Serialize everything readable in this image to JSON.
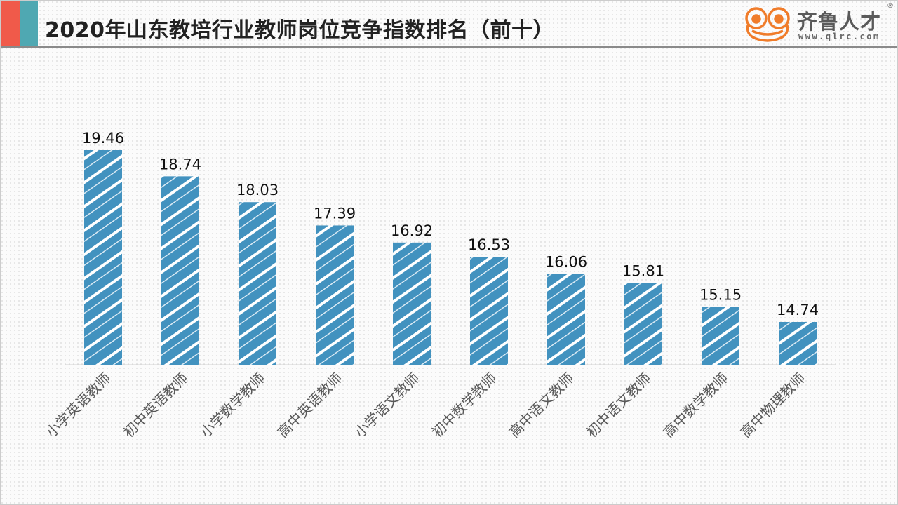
{
  "header": {
    "title": "2020年山东教培行业教师岗位竞争指数排名（前十）",
    "accent_colors": [
      "#f05a4a",
      "#4fa8b2"
    ]
  },
  "logo": {
    "name": "齐鲁人才",
    "url": "www.qlrc.com",
    "registered": "®",
    "icon": "frog-face-icon",
    "color": "#f07c2a"
  },
  "chart_data": {
    "type": "bar",
    "title": "",
    "xlabel": "",
    "ylabel": "",
    "categories": [
      "小学英语教师",
      "初中英语教师",
      "小学数学教师",
      "高中英语教师",
      "小学语文教师",
      "初中数学教师",
      "高中语文教师",
      "初中语文教师",
      "高中数学教师",
      "高中物理教师"
    ],
    "values": [
      19.46,
      18.74,
      18.03,
      17.39,
      16.92,
      16.53,
      16.06,
      15.81,
      15.15,
      14.74
    ],
    "value_labels": [
      "19.46",
      "18.74",
      "18.03",
      "17.39",
      "16.92",
      "16.53",
      "16.06",
      "15.81",
      "15.15",
      "14.74"
    ],
    "bar_color": "#4292bf",
    "bar_pattern": "white diagonal hatching",
    "grid": false,
    "legend": "none"
  }
}
